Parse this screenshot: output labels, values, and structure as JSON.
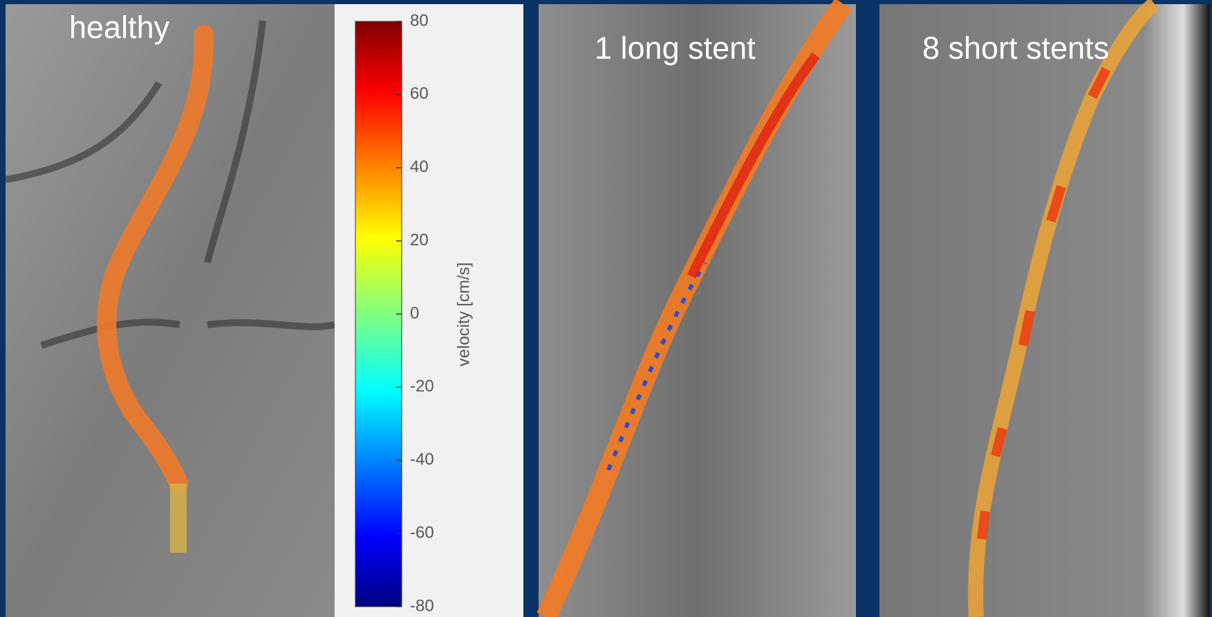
{
  "panels": [
    {
      "label": "healthy"
    },
    {
      "label": "1 long stent"
    },
    {
      "label": "8 short stents"
    }
  ],
  "colorbar": {
    "label": "velocity [cm/s]",
    "lim": [
      -80,
      80
    ],
    "ticks": [
      80,
      60,
      40,
      20,
      0,
      -20,
      -40,
      -60,
      -80
    ]
  }
}
